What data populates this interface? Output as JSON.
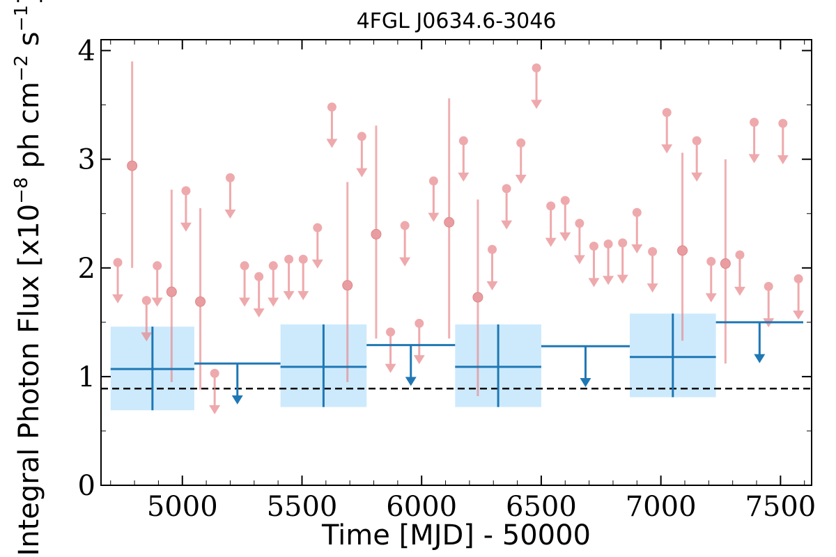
{
  "chart_data": {
    "type": "scatter",
    "title": "4FGL J0634.6-3046",
    "xlabel": "Time [MJD] - 50000",
    "ylabel": "Integral Photon Flux [x10$^{-8}$ ph cm$^{-2}$ s$^{-1}$]",
    "ylabel_parts": {
      "text1": "Integral Photon Flux [x10",
      "sup1": "−8",
      "text2": " ph cm",
      "sup2": "−2",
      "text3": " s",
      "sup3": "−1",
      "text4": "]"
    },
    "xlim": [
      4660,
      7630
    ],
    "ylim": [
      0,
      4.1
    ],
    "xticks": [
      5000,
      5500,
      6000,
      6500,
      7000,
      7500
    ],
    "yticks": [
      0,
      1,
      2,
      3,
      4
    ],
    "mean_flux": 0.89,
    "colors": {
      "fine": "#e8868a",
      "coarse": "#1f77b4",
      "coarse_band": "#cdeafc",
      "mean_line": "#000000"
    },
    "series": [
      {
        "bin_size_days": 60,
        "detections": [
          {
            "x": 4790,
            "y": 2.94,
            "low": 2.0,
            "high": 3.9
          },
          {
            "x": 4955,
            "y": 1.78,
            "low": 0.95,
            "high": 2.72
          },
          {
            "x": 5075,
            "y": 1.69,
            "low": 0.88,
            "high": 2.55
          },
          {
            "x": 5690,
            "y": 1.84,
            "low": 0.95,
            "high": 2.79
          },
          {
            "x": 5810,
            "y": 2.31,
            "low": 1.35,
            "high": 3.31
          },
          {
            "x": 6115,
            "y": 2.42,
            "low": 1.35,
            "high": 3.56
          },
          {
            "x": 6235,
            "y": 1.73,
            "low": 0.82,
            "high": 2.63
          },
          {
            "x": 7090,
            "y": 2.16,
            "low": 1.33,
            "high": 3.06
          },
          {
            "x": 7270,
            "y": 2.04,
            "low": 1.12,
            "high": 3.0
          }
        ],
        "upper_limits": [
          {
            "x": 4730,
            "y": 2.05
          },
          {
            "x": 4850,
            "y": 1.7
          },
          {
            "x": 4895,
            "y": 2.02
          },
          {
            "x": 5015,
            "y": 2.71
          },
          {
            "x": 5135,
            "y": 1.03
          },
          {
            "x": 5200,
            "y": 2.83
          },
          {
            "x": 5260,
            "y": 2.02
          },
          {
            "x": 5320,
            "y": 1.92
          },
          {
            "x": 5380,
            "y": 2.02
          },
          {
            "x": 5445,
            "y": 2.08
          },
          {
            "x": 5505,
            "y": 2.08
          },
          {
            "x": 5565,
            "y": 2.37
          },
          {
            "x": 5625,
            "y": 3.48
          },
          {
            "x": 5750,
            "y": 3.21
          },
          {
            "x": 5870,
            "y": 1.41
          },
          {
            "x": 5930,
            "y": 2.39
          },
          {
            "x": 5990,
            "y": 1.49
          },
          {
            "x": 6050,
            "y": 2.8
          },
          {
            "x": 6175,
            "y": 3.17
          },
          {
            "x": 6295,
            "y": 2.17
          },
          {
            "x": 6355,
            "y": 2.73
          },
          {
            "x": 6415,
            "y": 3.15
          },
          {
            "x": 6480,
            "y": 3.84
          },
          {
            "x": 6540,
            "y": 2.57
          },
          {
            "x": 6600,
            "y": 2.62
          },
          {
            "x": 6660,
            "y": 2.41
          },
          {
            "x": 6720,
            "y": 2.2
          },
          {
            "x": 6780,
            "y": 2.22
          },
          {
            "x": 6840,
            "y": 2.23
          },
          {
            "x": 6900,
            "y": 2.51
          },
          {
            "x": 6965,
            "y": 2.15
          },
          {
            "x": 7025,
            "y": 3.43
          },
          {
            "x": 7150,
            "y": 3.17
          },
          {
            "x": 7210,
            "y": 2.06
          },
          {
            "x": 7330,
            "y": 2.12
          },
          {
            "x": 7390,
            "y": 3.34
          },
          {
            "x": 7450,
            "y": 1.83
          },
          {
            "x": 7510,
            "y": 3.33
          },
          {
            "x": 7575,
            "y": 1.9
          }
        ]
      },
      {
        "bin_size_days": 365,
        "detections": [
          {
            "x0": 4700,
            "x1": 5050,
            "y": 1.07,
            "low": 0.69,
            "high": 1.46
          },
          {
            "x0": 5410,
            "x1": 5770,
            "y": 1.09,
            "low": 0.72,
            "high": 1.48
          },
          {
            "x0": 6140,
            "x1": 6500,
            "y": 1.09,
            "low": 0.72,
            "high": 1.48
          },
          {
            "x0": 6870,
            "x1": 7230,
            "y": 1.18,
            "low": 0.81,
            "high": 1.58
          }
        ],
        "upper_limits": [
          {
            "x0": 5050,
            "x1": 5410,
            "y": 1.12
          },
          {
            "x0": 5770,
            "x1": 6140,
            "y": 1.29
          },
          {
            "x0": 6500,
            "x1": 6870,
            "y": 1.28
          },
          {
            "x0": 7230,
            "x1": 7595,
            "y": 1.5
          }
        ]
      }
    ]
  }
}
